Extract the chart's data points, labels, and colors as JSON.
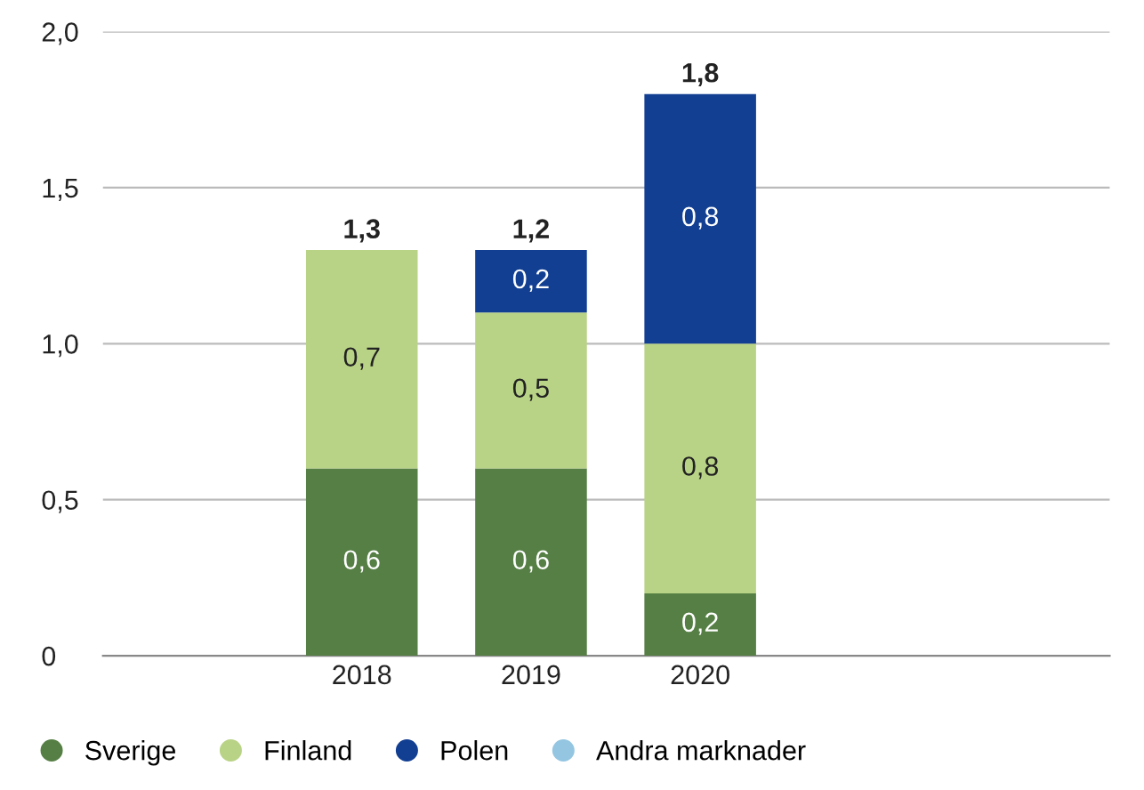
{
  "chart_data": {
    "type": "bar",
    "stacked": true,
    "categories": [
      "2018",
      "2019",
      "2020"
    ],
    "series": [
      {
        "name": "Sverige",
        "color": "#567f45",
        "values": [
          0.6,
          0.6,
          0.2
        ],
        "value_labels": [
          "0,6",
          "0,6",
          "0,2"
        ]
      },
      {
        "name": "Finland",
        "color": "#b9d386",
        "values": [
          0.7,
          0.5,
          0.8
        ],
        "value_labels": [
          "0,7",
          "0,5",
          "0,8"
        ]
      },
      {
        "name": "Polen",
        "color": "#123f92",
        "values": [
          null,
          0.2,
          0.8
        ],
        "value_labels": [
          null,
          "0,2",
          "0,8"
        ]
      },
      {
        "name": "Andra marknader",
        "color": "#94c6e2",
        "values": [
          null,
          null,
          null
        ]
      }
    ],
    "totals": [
      "1,3",
      "1,2",
      "1,8"
    ],
    "ylim": [
      0,
      2.0
    ],
    "yticks": [
      0,
      {
        "value": 0.5,
        "label": "0,5"
      },
      {
        "value": 1.0,
        "label": "1,0"
      },
      {
        "value": 1.5,
        "label": "1,5"
      },
      {
        "value": 2.0,
        "label": "2,0"
      }
    ],
    "grid": "y",
    "legend": "bottom left",
    "marker": "circle"
  }
}
